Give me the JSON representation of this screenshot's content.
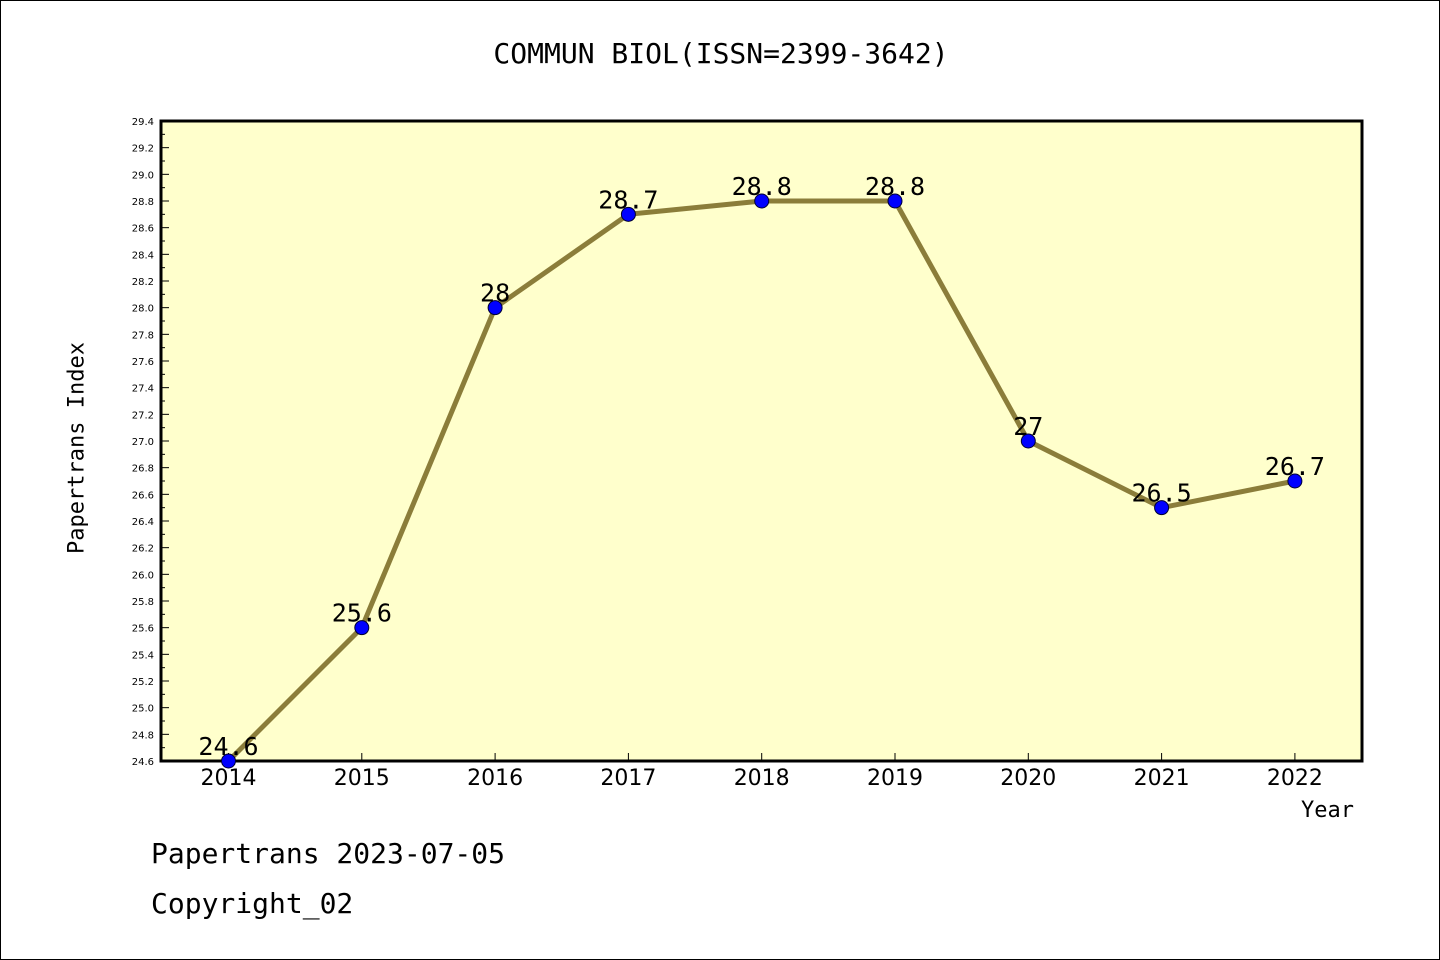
{
  "colors": {
    "plot_background": "#FFFFCC",
    "line": "#8B7D3A",
    "marker": "#0000FF",
    "axis": "#000000"
  },
  "footer": {
    "line1": "Papertrans 2023-07-05",
    "line2": "Copyright_02"
  },
  "chart_data": {
    "type": "line",
    "title": "COMMUN BIOL(ISSN=2399-3642)",
    "xlabel": "Year",
    "ylabel": "Papertrans Index",
    "categories": [
      "2014",
      "2015",
      "2016",
      "2017",
      "2018",
      "2019",
      "2020",
      "2021",
      "2022"
    ],
    "series": [
      {
        "values": [
          24.6,
          25.6,
          28,
          28.7,
          28.8,
          28.8,
          27,
          26.5,
          26.7
        ],
        "data_labels": [
          "24.6",
          "25.6",
          "28",
          "28.7",
          "28.8",
          "28.8",
          "27",
          "26.5",
          "26.7"
        ]
      }
    ],
    "ylim": [
      24.6,
      29.4
    ],
    "yticks": [
      "24.6",
      "24.8",
      "25.0",
      "25.2",
      "25.4",
      "25.6",
      "25.8",
      "26.0",
      "26.2",
      "26.4",
      "26.6",
      "26.8",
      "27.0",
      "27.2",
      "27.4",
      "27.6",
      "27.8",
      "28.0",
      "28.2",
      "28.4",
      "28.6",
      "28.8",
      "29.0",
      "29.2",
      "29.4"
    ],
    "grid": false,
    "legend": "none"
  }
}
